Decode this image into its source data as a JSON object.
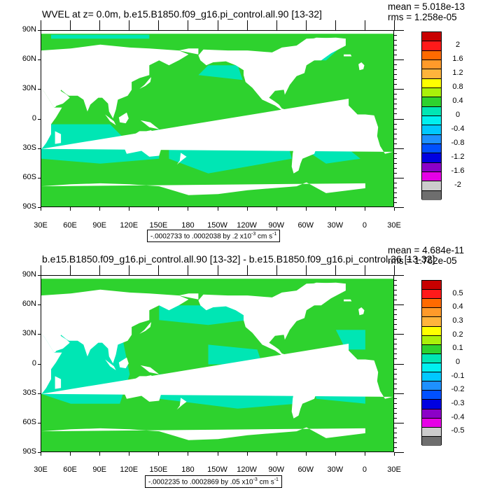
{
  "panel1": {
    "title": "WVEL at z=   0.0m, b.e15.B1850.f09_g16.pi_control.all.90 [13-32]",
    "mean": "mean = 5.018e-13",
    "rms": "rms = 1.258e-05",
    "range_prefix": "-.0002733 to .0002038 by .2 x10",
    "range_exp": "-3",
    "range_unit": " cm s",
    "range_unit_exp": "-1",
    "colorbar_labels": [
      "2",
      "1.6",
      "1.2",
      "0.8",
      "0.4",
      "0",
      "-0.4",
      "-0.8",
      "-1.2",
      "-1.6",
      "-2"
    ]
  },
  "panel2": {
    "title": "b.e15.B1850.f09_g16.pi_control.all.90 [13-32] - b.e15.B1850.f09_g16.pi_control.36 [13-32]",
    "mean": "mean = 4.684e-11",
    "rms": "rms = 1.762e-05",
    "range_prefix": "-.0002235 to .0002869 by .05 x10",
    "range_exp": "-3",
    "range_unit": " cm s",
    "range_unit_exp": "-1",
    "colorbar_labels": [
      "0.5",
      "0.4",
      "0.3",
      "0.2",
      "0.1",
      "0",
      "-0.1",
      "-0.2",
      "-0.3",
      "-0.4",
      "-0.5"
    ]
  },
  "lat_labels": [
    "90N",
    "60N",
    "30N",
    "0",
    "30S",
    "60S",
    "90S"
  ],
  "lon_labels": [
    "30E",
    "60E",
    "90E",
    "120E",
    "150E",
    "180",
    "150W",
    "120W",
    "90W",
    "60W",
    "30W",
    "0",
    "30E"
  ],
  "colorbar_colors": [
    "#c80000",
    "#ff1a1a",
    "#ff6a00",
    "#ff9a2a",
    "#ffb43c",
    "#ffff00",
    "#aaf00a",
    "#2ed22e",
    "#00e6b4",
    "#00f0f0",
    "#00c8ff",
    "#1e90ff",
    "#0050ff",
    "#0000e0",
    "#8c00c8",
    "#e600e6",
    "#cccccc",
    "#6e6e6e"
  ],
  "map_colors": {
    "ocean_neutral": "#2ed22e",
    "ocean_weak_negative": "#00e6b4",
    "land": "#ffffff"
  }
}
